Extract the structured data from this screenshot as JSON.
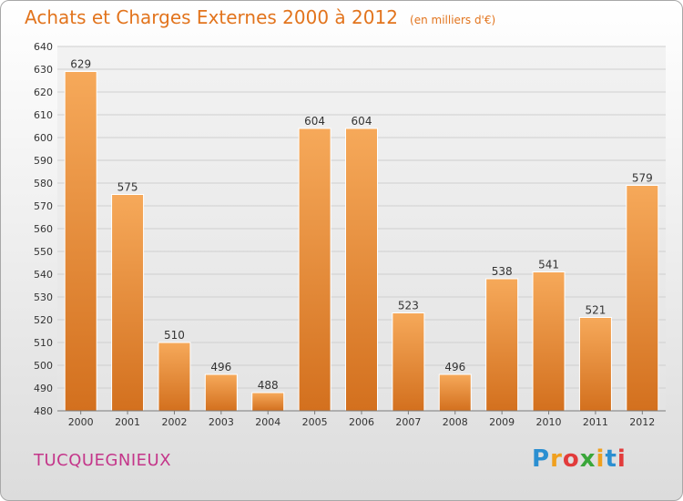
{
  "title": "Achats et Charges Externes 2000 à 2012",
  "subtitle": "(en milliers d'€)",
  "commune": "TUCQUEGNIEUX",
  "brand": "Proxiti",
  "colors": {
    "title": "#e2741d",
    "bar_top": "#f6a95a",
    "bar_bottom": "#d3701e",
    "commune": "#c4368a"
  },
  "chart_data": {
    "type": "bar",
    "title": "Achats et Charges Externes 2000 à 2012",
    "subtitle": "(en milliers d'€)",
    "categories": [
      "2000",
      "2001",
      "2002",
      "2003",
      "2004",
      "2005",
      "2006",
      "2007",
      "2008",
      "2009",
      "2010",
      "2011",
      "2012"
    ],
    "values": [
      629,
      575,
      510,
      496,
      488,
      604,
      604,
      523,
      496,
      538,
      541,
      521,
      579
    ],
    "ylim": [
      480,
      640
    ],
    "yticks": [
      480,
      490,
      500,
      510,
      520,
      530,
      540,
      550,
      560,
      570,
      580,
      590,
      600,
      610,
      620,
      630,
      640
    ],
    "grid": true,
    "data_labels": true
  }
}
